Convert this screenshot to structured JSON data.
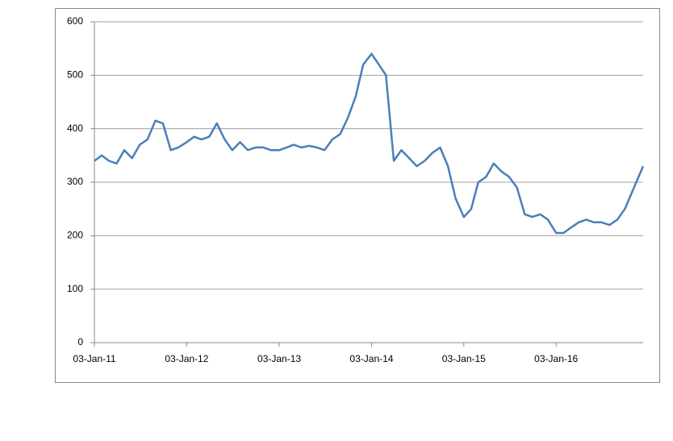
{
  "chart_data": {
    "type": "line",
    "x": [
      "2011-01-03",
      "2011-02-01",
      "2011-03-01",
      "2011-04-01",
      "2011-05-01",
      "2011-06-01",
      "2011-07-01",
      "2011-08-01",
      "2011-09-01",
      "2011-10-01",
      "2011-11-01",
      "2011-12-01",
      "2012-01-03",
      "2012-02-01",
      "2012-03-01",
      "2012-04-01",
      "2012-05-01",
      "2012-06-01",
      "2012-07-01",
      "2012-08-01",
      "2012-09-01",
      "2012-10-01",
      "2012-11-01",
      "2012-12-01",
      "2013-01-03",
      "2013-02-01",
      "2013-03-01",
      "2013-04-01",
      "2013-05-01",
      "2013-06-01",
      "2013-07-01",
      "2013-08-01",
      "2013-09-01",
      "2013-10-01",
      "2013-11-01",
      "2013-12-01",
      "2014-01-03",
      "2014-02-01",
      "2014-03-01",
      "2014-04-01",
      "2014-05-01",
      "2014-06-01",
      "2014-07-01",
      "2014-08-01",
      "2014-09-01",
      "2014-10-01",
      "2014-11-01",
      "2014-12-01",
      "2015-01-03",
      "2015-02-01",
      "2015-03-01",
      "2015-04-01",
      "2015-05-01",
      "2015-06-01",
      "2015-07-01",
      "2015-08-01",
      "2015-09-01",
      "2015-10-01",
      "2015-11-01",
      "2015-12-01",
      "2016-01-03",
      "2016-02-01",
      "2016-03-01",
      "2016-04-01",
      "2016-05-01",
      "2016-06-01",
      "2016-07-01",
      "2016-08-01",
      "2016-09-01",
      "2016-10-01",
      "2016-11-01",
      "2016-12-12"
    ],
    "series": [
      {
        "color": "#4a7ebb",
        "values": [
          340,
          350,
          340,
          335,
          360,
          345,
          370,
          380,
          415,
          410,
          360,
          365,
          375,
          385,
          380,
          385,
          410,
          380,
          360,
          375,
          360,
          365,
          365,
          360,
          360,
          365,
          370,
          365,
          368,
          365,
          360,
          380,
          390,
          420,
          460,
          520,
          540,
          520,
          500,
          340,
          360,
          345,
          330,
          340,
          355,
          365,
          330,
          270,
          235,
          250,
          300,
          310,
          335,
          320,
          310,
          290,
          240,
          235,
          240,
          230,
          205,
          205,
          215,
          225,
          230,
          225,
          225,
          220,
          230,
          250,
          285,
          330
        ]
      }
    ],
    "xlim": [
      "2011-01-03",
      "2016-12-12"
    ],
    "xticks": [
      {
        "value": "2011-01-03",
        "label": "03-Jan-11"
      },
      {
        "value": "2012-01-03",
        "label": "03-Jan-12"
      },
      {
        "value": "2013-01-03",
        "label": "03-Jan-13"
      },
      {
        "value": "2014-01-03",
        "label": "03-Jan-14"
      },
      {
        "value": "2015-01-03",
        "label": "03-Jan-15"
      },
      {
        "value": "2016-01-03",
        "label": "03-Jan-16"
      }
    ],
    "ylim": [
      0,
      600
    ],
    "yticks": [
      0,
      100,
      200,
      300,
      400,
      500,
      600
    ],
    "grid": true
  }
}
